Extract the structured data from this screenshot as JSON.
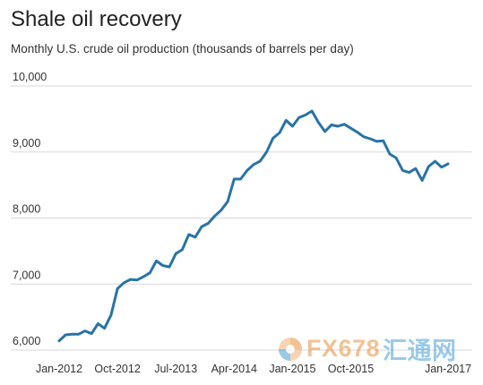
{
  "header": {
    "title": "Shale oil recovery",
    "subtitle": "Monthly U.S. crude oil production (thousands of barrels per day)"
  },
  "watermark": {
    "text_a": "FX678",
    "text_b": "汇通网",
    "colors": {
      "a": "#e8913c",
      "b": "#4a9fd6"
    },
    "icon": "globe-logo-icon"
  },
  "chart_data": {
    "type": "line",
    "title": "Shale oil recovery",
    "subtitle": "Monthly U.S. crude oil production (thousands of barrels per day)",
    "xlabel": "",
    "ylabel": "",
    "x_range": [
      "Jan-2012",
      "Jan-2017"
    ],
    "ylim": [
      6000,
      10000
    ],
    "yticks": [
      6000,
      7000,
      8000,
      9000,
      10000
    ],
    "ytick_labels": [
      "6,000",
      "7,000",
      "8,000",
      "9,000",
      "10,000"
    ],
    "xtick_labels": [
      "Jan-2012",
      "Oct-2012",
      "Jul-2013",
      "Apr-2014",
      "Jan-2015",
      "Oct-2015",
      "Jan-2017"
    ],
    "xtick_months": [
      "2012-01",
      "2012-10",
      "2013-07",
      "2014-04",
      "2015-01",
      "2015-10",
      "2017-01"
    ],
    "grid": "horizontal",
    "legend": "none",
    "series": [
      {
        "color": "#2874a6",
        "x": [
          "2012-01",
          "2012-02",
          "2012-03",
          "2012-04",
          "2012-05",
          "2012-06",
          "2012-07",
          "2012-08",
          "2012-09",
          "2012-10",
          "2012-11",
          "2012-12",
          "2013-01",
          "2013-02",
          "2013-03",
          "2013-04",
          "2013-05",
          "2013-06",
          "2013-07",
          "2013-08",
          "2013-09",
          "2013-10",
          "2013-11",
          "2013-12",
          "2014-01",
          "2014-02",
          "2014-03",
          "2014-04",
          "2014-05",
          "2014-06",
          "2014-07",
          "2014-08",
          "2014-09",
          "2014-10",
          "2014-11",
          "2014-12",
          "2015-01",
          "2015-02",
          "2015-03",
          "2015-04",
          "2015-05",
          "2015-06",
          "2015-07",
          "2015-08",
          "2015-09",
          "2015-10",
          "2015-11",
          "2015-12",
          "2016-01",
          "2016-02",
          "2016-03",
          "2016-04",
          "2016-05",
          "2016-06",
          "2016-07",
          "2016-08",
          "2016-09",
          "2016-10",
          "2016-11",
          "2016-12",
          "2017-01"
        ],
        "values": [
          6140,
          6230,
          6240,
          6240,
          6290,
          6250,
          6400,
          6330,
          6530,
          6930,
          7020,
          7070,
          7060,
          7110,
          7170,
          7350,
          7280,
          7260,
          7460,
          7520,
          7750,
          7710,
          7870,
          7920,
          8030,
          8120,
          8250,
          8590,
          8590,
          8720,
          8810,
          8860,
          9000,
          9210,
          9290,
          9480,
          9390,
          9520,
          9560,
          9620,
          9450,
          9310,
          9410,
          9390,
          9420,
          9360,
          9300,
          9230,
          9200,
          9160,
          9170,
          8970,
          8910,
          8720,
          8690,
          8750,
          8570,
          8780,
          8860,
          8770,
          8820
        ]
      }
    ]
  }
}
